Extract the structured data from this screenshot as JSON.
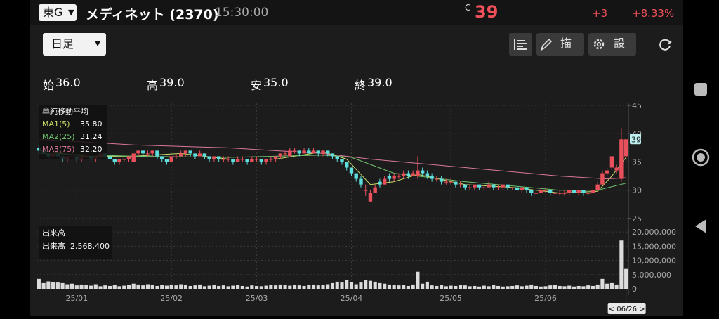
{
  "header": {
    "market": "東G",
    "name": "メディネット (2370)",
    "time": "15:30:00",
    "mark": "C",
    "price": "39",
    "change": "+3",
    "change_pct": "+8.33%"
  },
  "toolbar": {
    "period": "日足",
    "draw_button": "描画",
    "settings_button": "設定"
  },
  "ohlc": [
    {
      "label": "始",
      "value": "36.0"
    },
    {
      "label": "高",
      "value": "39.0"
    },
    {
      "label": "安",
      "value": "35.0"
    },
    {
      "label": "終",
      "value": "39.0"
    }
  ],
  "chart_data": {
    "type": "candlestick",
    "up_color": "#e8505b",
    "down_color": "#5fdede",
    "ylim": [
      23,
      46
    ],
    "yticks": [
      25,
      30,
      35,
      40,
      45
    ],
    "xlim": [
      -0.5,
      124.5
    ],
    "xticks": [
      {
        "value": 8,
        "label": "25/01"
      },
      {
        "value": 28,
        "label": "25/02"
      },
      {
        "value": 46,
        "label": "25/03"
      },
      {
        "value": 66,
        "label": "25/04"
      },
      {
        "value": 87,
        "label": "25/05"
      },
      {
        "value": 107,
        "label": "25/06"
      }
    ],
    "cursor_label": "< 06/26 >",
    "ma_title": "単純移動平均",
    "candles": [
      [
        37.5,
        38,
        36.5,
        37
      ],
      [
        37,
        37,
        36,
        36.5
      ],
      [
        36.5,
        36.5,
        35.5,
        36
      ],
      [
        36,
        36.5,
        35.5,
        36.5
      ],
      [
        36.5,
        36.5,
        35.5,
        36
      ],
      [
        36,
        36,
        35,
        35.5
      ],
      [
        35.5,
        36,
        35,
        36
      ],
      [
        36,
        36.5,
        35.5,
        36
      ],
      [
        36,
        36,
        35,
        35.5
      ],
      [
        35.5,
        36,
        35,
        36
      ],
      [
        36,
        36.5,
        35.5,
        36
      ],
      [
        36,
        36,
        35,
        35.5
      ],
      [
        35.5,
        36,
        35,
        36
      ],
      [
        36,
        36.5,
        35.5,
        36.5
      ],
      [
        36.5,
        36.5,
        35.5,
        36
      ],
      [
        36,
        36,
        35,
        35.5
      ],
      [
        35.5,
        35.5,
        34.5,
        35
      ],
      [
        35,
        35.5,
        34.5,
        35.5
      ],
      [
        35.5,
        35.5,
        35,
        35.5
      ],
      [
        35.5,
        36,
        35,
        36
      ],
      [
        35,
        36.5,
        35,
        36.5
      ],
      [
        36.5,
        37,
        36,
        37
      ],
      [
        37,
        37,
        36,
        36.5
      ],
      [
        36.5,
        37,
        36,
        36.5
      ],
      [
        36.5,
        37,
        36,
        37
      ],
      [
        37,
        37,
        35.5,
        36
      ],
      [
        36,
        36,
        35,
        35.5
      ],
      [
        35.5,
        35.5,
        34.5,
        35
      ],
      [
        35,
        36,
        35,
        36
      ],
      [
        36,
        36.5,
        35.5,
        36
      ],
      [
        36,
        37,
        36,
        36.5
      ],
      [
        36.5,
        37,
        36,
        37
      ],
      [
        37,
        37,
        36,
        36.5
      ],
      [
        36.5,
        36.5,
        35.5,
        36
      ],
      [
        36,
        37,
        36,
        36.5
      ],
      [
        36.5,
        36.5,
        35.5,
        36
      ],
      [
        36,
        36,
        35,
        35.5
      ],
      [
        35.5,
        36,
        35,
        36
      ],
      [
        36,
        36,
        35,
        35.5
      ],
      [
        35.5,
        36,
        35,
        35.5
      ],
      [
        35.5,
        36,
        35,
        35.5
      ],
      [
        35.5,
        35.5,
        34.5,
        35
      ],
      [
        35,
        36,
        35,
        35.5
      ],
      [
        35.5,
        36,
        35,
        35.5
      ],
      [
        35.5,
        35.5,
        34.5,
        35
      ],
      [
        35,
        36,
        35,
        35.5
      ],
      [
        35.5,
        36,
        35,
        35.5
      ],
      [
        35.5,
        35.5,
        34.5,
        35
      ],
      [
        35,
        35.5,
        34.5,
        35.5
      ],
      [
        35.5,
        36,
        35,
        35.5
      ],
      [
        35.5,
        36,
        35,
        36
      ],
      [
        36,
        36.5,
        35.5,
        36.5
      ],
      [
        36.5,
        37,
        36,
        36.5
      ],
      [
        36,
        37.5,
        36,
        37
      ],
      [
        37,
        37.5,
        36.5,
        37
      ],
      [
        37,
        37,
        36,
        36.5
      ],
      [
        36.5,
        37.5,
        36.5,
        37
      ],
      [
        37,
        37.5,
        36.5,
        36.5
      ],
      [
        36.5,
        37.5,
        36.5,
        37
      ],
      [
        37,
        37,
        36,
        36.5
      ],
      [
        36.5,
        37,
        36,
        37
      ],
      [
        37,
        37,
        36,
        36.5
      ],
      [
        36.5,
        36.5,
        35.5,
        36
      ],
      [
        36,
        36,
        35,
        35.5
      ],
      [
        35.5,
        35.5,
        34.5,
        35
      ],
      [
        35,
        35,
        33.5,
        34
      ],
      [
        34,
        34,
        32.5,
        33
      ],
      [
        33,
        33,
        31.5,
        32
      ],
      [
        32,
        32.5,
        30.5,
        31
      ],
      [
        30,
        31,
        29,
        30
      ],
      [
        28,
        30,
        28,
        29.5
      ],
      [
        29.5,
        31,
        29.5,
        30.5
      ],
      [
        31.5,
        32,
        30.5,
        31
      ],
      [
        31,
        32.5,
        31,
        32
      ],
      [
        32.5,
        33,
        31.5,
        32
      ],
      [
        32,
        33,
        31.5,
        32.5
      ],
      [
        32.5,
        33,
        32,
        32.5
      ],
      [
        32.5,
        33.5,
        32,
        33
      ],
      [
        33,
        33.5,
        32,
        32.5
      ],
      [
        32.5,
        33.5,
        32.5,
        33
      ],
      [
        32.5,
        36,
        32,
        33.5
      ],
      [
        33.5,
        34,
        32.5,
        33
      ],
      [
        33,
        33.5,
        32,
        32.5
      ],
      [
        32.5,
        33,
        31.5,
        32
      ],
      [
        32,
        32.5,
        31.5,
        32
      ],
      [
        32,
        32.5,
        31,
        31.5
      ],
      [
        31.5,
        32,
        31,
        31.5
      ],
      [
        31.5,
        32,
        31,
        31.5
      ],
      [
        31.5,
        31.5,
        30.5,
        31
      ],
      [
        31,
        31.5,
        30.5,
        31
      ],
      [
        31,
        31,
        30,
        30.5
      ],
      [
        30.5,
        31,
        30,
        30.5
      ],
      [
        30.5,
        31,
        30,
        31
      ],
      [
        31,
        31,
        30,
        30.5
      ],
      [
        30.5,
        31,
        30,
        30.5
      ],
      [
        30.5,
        31.5,
        30.5,
        31
      ],
      [
        31,
        31,
        30,
        30.5
      ],
      [
        30.5,
        31,
        30,
        30.5
      ],
      [
        30.5,
        31,
        30,
        31
      ],
      [
        31,
        31,
        30,
        30.5
      ],
      [
        30.5,
        30.5,
        30,
        30.5
      ],
      [
        30.5,
        30.5,
        29.5,
        30
      ],
      [
        30,
        30.5,
        29.5,
        30.5
      ],
      [
        30.5,
        30.5,
        29.5,
        30
      ],
      [
        30,
        30,
        29,
        29.5
      ],
      [
        29.5,
        30,
        29,
        29.5
      ],
      [
        29.5,
        30.5,
        29.5,
        30
      ],
      [
        30,
        30.5,
        29.5,
        30
      ],
      [
        30,
        30,
        29,
        29.5
      ],
      [
        29.5,
        30,
        29,
        29.5
      ],
      [
        29.5,
        30,
        29,
        29.5
      ],
      [
        29.5,
        30,
        29,
        29.5
      ],
      [
        29.5,
        30,
        29,
        30
      ],
      [
        30,
        30,
        29,
        29.5
      ],
      [
        29.5,
        30,
        29,
        30
      ],
      [
        30,
        30,
        29,
        29.5
      ],
      [
        29.5,
        30,
        29,
        29.5
      ],
      [
        29.5,
        30.5,
        29.5,
        30
      ],
      [
        30,
        31.5,
        30,
        31
      ],
      [
        31,
        33.5,
        31,
        33
      ],
      [
        33,
        34,
        32.5,
        33.5
      ],
      [
        34,
        36,
        33.5,
        36
      ],
      [
        33.5,
        34.5,
        33,
        34
      ],
      [
        32,
        41,
        31.5,
        39
      ],
      [
        36,
        39,
        35,
        39
      ]
    ],
    "ma_lines": [
      {
        "name": "MA1(5)",
        "value_label": "35.80",
        "color": "#c8e06a",
        "x": [
          0,
          10,
          20,
          30,
          40,
          50,
          60,
          65,
          70,
          75,
          80,
          90,
          100,
          110,
          118,
          121,
          124
        ],
        "values": [
          37,
          36,
          36,
          36.5,
          35.5,
          35.5,
          36.8,
          35.5,
          31,
          31.5,
          32.8,
          31,
          30.5,
          29.5,
          29.8,
          32.5,
          35.8
        ]
      },
      {
        "name": "MA2(25)",
        "value_label": "31.24",
        "color": "#6fc46f",
        "x": [
          0,
          20,
          40,
          60,
          66,
          75,
          90,
          110,
          118,
          124
        ],
        "values": [
          36.5,
          36,
          35.8,
          36.2,
          35.8,
          33,
          31.5,
          30,
          30,
          31.24
        ]
      },
      {
        "name": "MA3(75)",
        "value_label": "32.20",
        "color": "#d9789c",
        "x": [
          0,
          20,
          40,
          60,
          70,
          90,
          110,
          120,
          124
        ],
        "values": [
          39,
          38,
          37.5,
          36.5,
          35.5,
          34,
          32.5,
          32,
          32.2
        ]
      }
    ],
    "volume": {
      "title": "出来高",
      "label": "出来高",
      "value_label": "2,568,400",
      "color": "#dcdcdc",
      "ylim": [
        0,
        22000000
      ],
      "yticks": [
        0,
        {
          "value": 5000000,
          "label": "5,000,000"
        },
        {
          "value": 10000000,
          "label": "10,000,000"
        },
        {
          "value": 15000000,
          "label": "15,000,000"
        },
        {
          "value": 20000000,
          "label": "20,000,000"
        }
      ],
      "values": [
        3500000,
        2000000,
        2600000,
        2400000,
        2200000,
        2000000,
        1600000,
        1800000,
        1200000,
        1500000,
        1300000,
        1100000,
        1600000,
        900000,
        1200000,
        1000000,
        1400000,
        900000,
        1100000,
        1300000,
        1800000,
        1500000,
        1200000,
        1600000,
        1400000,
        1000000,
        1300000,
        1100000,
        1500000,
        1200000,
        1600000,
        1400000,
        1000000,
        1200000,
        1500000,
        900000,
        1100000,
        1300000,
        1000000,
        1200000,
        900000,
        1100000,
        1300000,
        1000000,
        800000,
        1200000,
        1000000,
        900000,
        1100000,
        1300000,
        1200000,
        1500000,
        1300000,
        1100000,
        1400000,
        1200000,
        1000000,
        1300000,
        1500000,
        1200000,
        1400000,
        1600000,
        2000000,
        2500000,
        2200000,
        3000000,
        2400000,
        1600000,
        2200000,
        3200000,
        2800000,
        2500000,
        2000000,
        1800000,
        1500000,
        1400000,
        1200000,
        1300000,
        1000000,
        1500000,
        6000000,
        1800000,
        2500000,
        1200000,
        1000000,
        1300000,
        900000,
        1100000,
        1000000,
        1400000,
        1200000,
        900000,
        1000000,
        800000,
        1100000,
        900000,
        1300000,
        1000000,
        800000,
        900000,
        1000000,
        1200000,
        900000,
        1100000,
        1500000,
        1000000,
        800000,
        900000,
        1200000,
        1300000,
        1000000,
        900000,
        1100000,
        800000,
        1000000,
        900000,
        1200000,
        1000000,
        1500000,
        3500000,
        1800000,
        2000000,
        1500000,
        17000000,
        7000000
      ]
    }
  }
}
